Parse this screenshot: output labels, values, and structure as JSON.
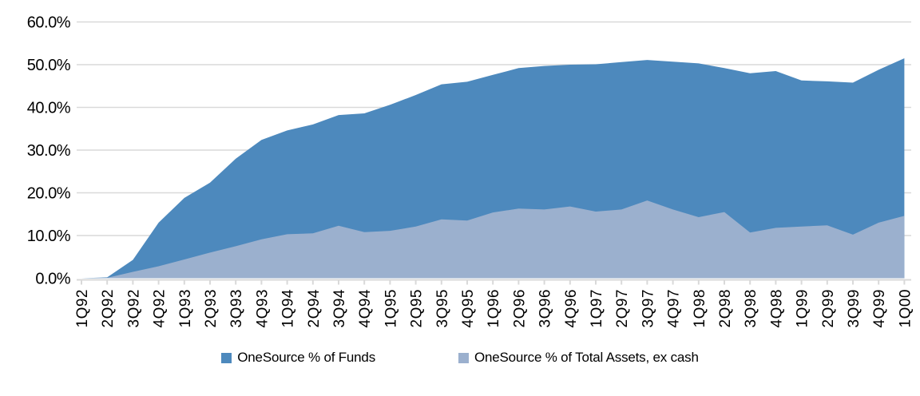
{
  "chart_data": {
    "type": "area",
    "title": "",
    "subtitle": "",
    "grid": true,
    "legend_position": "bottom",
    "overlap": "overlapping (not stacked)",
    "categories": [
      "1Q92",
      "2Q92",
      "3Q92",
      "4Q92",
      "1Q93",
      "2Q93",
      "3Q93",
      "4Q93",
      "1Q94",
      "2Q94",
      "3Q94",
      "4Q94",
      "1Q95",
      "2Q95",
      "3Q95",
      "4Q95",
      "1Q96",
      "2Q96",
      "3Q96",
      "4Q96",
      "1Q97",
      "2Q97",
      "3Q97",
      "4Q97",
      "1Q98",
      "2Q98",
      "3Q98",
      "4Q98",
      "1Q99",
      "2Q99",
      "3Q99",
      "4Q99",
      "1Q00"
    ],
    "series": [
      {
        "name": "OneSource % of Funds",
        "color": "#4D89BD",
        "values": [
          0.0,
          0.2,
          4.3,
          13.0,
          18.8,
          22.4,
          28.0,
          32.4,
          34.6,
          36.0,
          38.2,
          38.6,
          40.6,
          42.9,
          45.4,
          46.0,
          47.6,
          49.2,
          49.7,
          50.0,
          50.1,
          50.6,
          51.1,
          50.7,
          50.3,
          49.2,
          48.0,
          48.5,
          46.3,
          46.1,
          45.8,
          48.8,
          51.5
        ]
      },
      {
        "name": "OneSource % of Total Assets, ex cash",
        "color": "#9BB0CE",
        "values": [
          0.0,
          0.1,
          1.5,
          2.8,
          4.4,
          6.0,
          7.5,
          9.1,
          10.3,
          10.5,
          12.3,
          10.8,
          11.1,
          12.1,
          13.8,
          13.5,
          15.4,
          16.3,
          16.1,
          16.8,
          15.6,
          16.1,
          18.2,
          16.1,
          14.3,
          15.5,
          10.7,
          11.8,
          12.1,
          12.4,
          10.2,
          13.0,
          14.6
        ]
      }
    ],
    "xlabel": "",
    "ylabel": "",
    "y_axis": {
      "min": 0,
      "max": 60,
      "step": 10,
      "tick_labels": [
        "0.0%",
        "10.0%",
        "20.0%",
        "30.0%",
        "40.0%",
        "50.0%",
        "60.0%"
      ]
    }
  },
  "colors": {
    "gridline": "#D9D9D9",
    "axis_line": "#D9D9D9",
    "axis_text": "#000000"
  }
}
